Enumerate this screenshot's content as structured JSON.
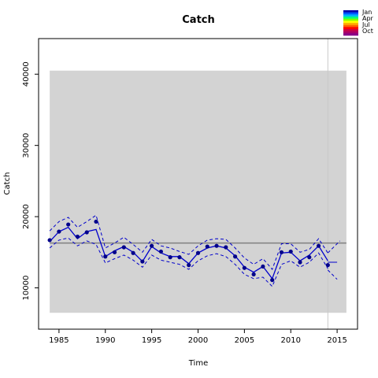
{
  "chart_data": {
    "type": "line",
    "title": "Catch",
    "xlabel": "Time",
    "ylabel": "Catch",
    "xlim": [
      1982.8,
      2017.2
    ],
    "ylim": [
      4200,
      45000
    ],
    "x_ticks": [
      1985,
      1990,
      1995,
      2000,
      2005,
      2010,
      2015
    ],
    "y_ticks": [
      10000,
      20000,
      30000,
      40000
    ],
    "shaded_region": {
      "x": [
        1984,
        2016
      ],
      "y": [
        6500,
        40500
      ],
      "color": "#d3d3d3"
    },
    "reference_line": {
      "y": 16300,
      "color": "#808080"
    },
    "vertical_line": {
      "x": 2014,
      "color": "#c8c8c8"
    },
    "points": {
      "x": [
        1984,
        1985,
        1986,
        1987,
        1988,
        1989,
        1990,
        1991,
        1992,
        1993,
        1994,
        1995,
        1996,
        1997,
        1998,
        1999,
        2000,
        2001,
        2002,
        2003,
        2004,
        2005,
        2006,
        2007,
        2008,
        2009,
        2010,
        2011,
        2012,
        2013,
        2014
      ],
      "y": [
        16700,
        17900,
        18900,
        17200,
        17800,
        19300,
        14400,
        15000,
        15700,
        14900,
        13700,
        15900,
        15100,
        14300,
        14300,
        13200,
        14900,
        15800,
        15900,
        15700,
        14400,
        12800,
        11900,
        13000,
        11100,
        15000,
        15100,
        13600,
        14300,
        15900,
        13200
      ]
    },
    "series": [
      {
        "name": "",
        "style": "solid",
        "color": "#0000cc",
        "values": [
          16500,
          17900,
          18500,
          16900,
          17900,
          18200,
          14400,
          15200,
          15800,
          15000,
          13700,
          15800,
          14900,
          14400,
          14400,
          13400,
          14900,
          15600,
          15900,
          15600,
          14500,
          12900,
          12200,
          13000,
          11300,
          14900,
          15000,
          13800,
          14600,
          15900,
          13800
        ]
      },
      {
        "name": "",
        "style": "dashed",
        "color": "#0000cc",
        "values": [
          18000,
          19300,
          19900,
          18500,
          19300,
          20200,
          15600,
          16300,
          17100,
          16100,
          15000,
          16800,
          15900,
          15600,
          15100,
          14700,
          15900,
          16700,
          16900,
          16800,
          15600,
          14200,
          13300,
          14100,
          12600,
          16200,
          16200,
          15000,
          15400,
          16900,
          14900
        ]
      },
      {
        "name": "",
        "style": "dashed",
        "color": "#0000cc",
        "values": [
          15600,
          16700,
          17000,
          15900,
          16600,
          16100,
          13500,
          14100,
          14600,
          13900,
          12900,
          14600,
          13900,
          13600,
          13300,
          12600,
          13800,
          14500,
          14800,
          14400,
          13300,
          11900,
          11300,
          11500,
          10200,
          13300,
          13800,
          12900,
          13600,
          14900,
          12700
        ]
      },
      {
        "name": "",
        "style": "projection",
        "color": "#0000cc",
        "x": [
          2014,
          2015
        ],
        "values": [
          13600,
          13600
        ]
      },
      {
        "name": "",
        "style": "projection-dashed",
        "color": "#0000cc",
        "x": [
          2014,
          2015.3
        ],
        "values": [
          14900,
          16600
        ]
      },
      {
        "name": "",
        "style": "projection-dashed",
        "color": "#0000cc",
        "x": [
          2014,
          2015
        ],
        "values": [
          12500,
          11200
        ]
      }
    ],
    "legend": {
      "placement": "top-right",
      "labels": [
        "Jan",
        "Apr",
        "Jul",
        "Oct"
      ],
      "colors": [
        "#0000aa",
        "#0055ff",
        "#00b4ff",
        "#00ff80",
        "#80ff00",
        "#ffff00",
        "#ffb000",
        "#ff6000",
        "#ff0000",
        "#cc0044",
        "#aa0066",
        "#880088"
      ]
    },
    "grid": false
  }
}
